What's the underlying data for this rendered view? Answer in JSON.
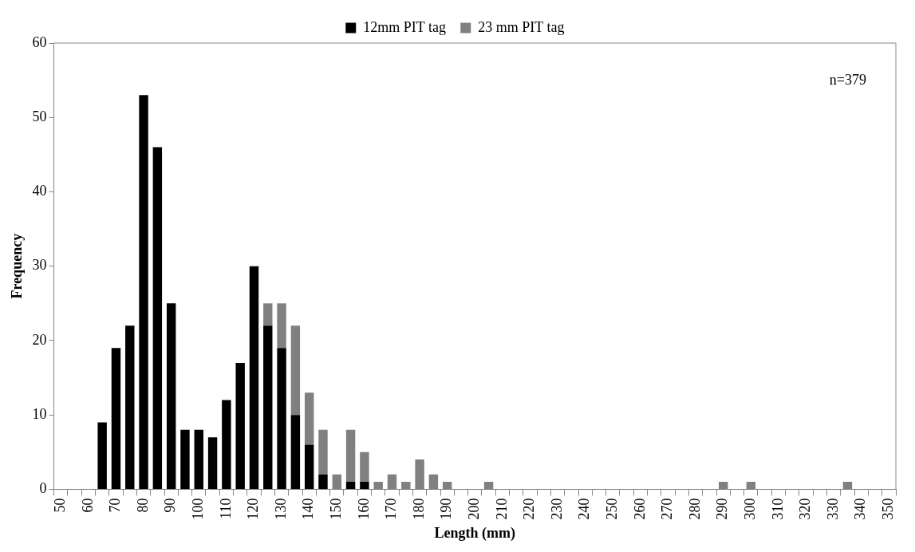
{
  "chart_data": {
    "type": "bar",
    "stacked": true,
    "xlabel": "Length (mm)",
    "ylabel": "Frequency",
    "categories": [
      "50",
      null,
      "60",
      null,
      "70",
      null,
      "80",
      null,
      "90",
      null,
      "100",
      null,
      "110",
      null,
      "120",
      null,
      "130",
      null,
      "140",
      null,
      "150",
      null,
      "160",
      null,
      "170",
      null,
      "180",
      null,
      "190",
      null,
      "200",
      null,
      "210",
      null,
      "220",
      null,
      "230",
      null,
      "240",
      null,
      "250",
      null,
      "260",
      null,
      "270",
      null,
      "280",
      null,
      "290",
      null,
      "300",
      null,
      "310",
      null,
      "320",
      null,
      "330",
      null,
      "340",
      null,
      "350"
    ],
    "series": [
      {
        "name": "12mm PIT tag",
        "color": "#000000",
        "values": [
          0,
          0,
          0,
          9,
          19,
          22,
          53,
          46,
          25,
          8,
          8,
          7,
          12,
          17,
          30,
          22,
          19,
          10,
          6,
          2,
          0,
          1,
          1,
          0,
          0,
          0,
          0,
          0,
          0,
          0,
          0,
          0,
          0,
          0,
          0,
          0,
          0,
          0,
          0,
          0,
          0,
          0,
          0,
          0,
          0,
          0,
          0,
          0,
          0,
          0,
          0,
          0,
          0,
          0,
          0,
          0,
          0,
          0,
          0,
          0,
          0
        ]
      },
      {
        "name": "23 mm PIT tag",
        "color": "#808080",
        "values": [
          0,
          0,
          0,
          0,
          0,
          0,
          0,
          0,
          0,
          0,
          0,
          0,
          0,
          0,
          0,
          3,
          6,
          12,
          7,
          6,
          2,
          7,
          4,
          1,
          2,
          1,
          4,
          2,
          1,
          0,
          0,
          1,
          0,
          0,
          0,
          0,
          0,
          0,
          0,
          0,
          0,
          0,
          0,
          0,
          0,
          0,
          0,
          0,
          1,
          0,
          1,
          0,
          0,
          0,
          0,
          0,
          0,
          1,
          0,
          0,
          0
        ]
      }
    ],
    "ylim": [
      0,
      60
    ],
    "yticks": [
      0,
      10,
      20,
      30,
      40,
      50,
      60
    ],
    "grid": false,
    "legend": "top",
    "annotations": [
      "n=379"
    ]
  }
}
